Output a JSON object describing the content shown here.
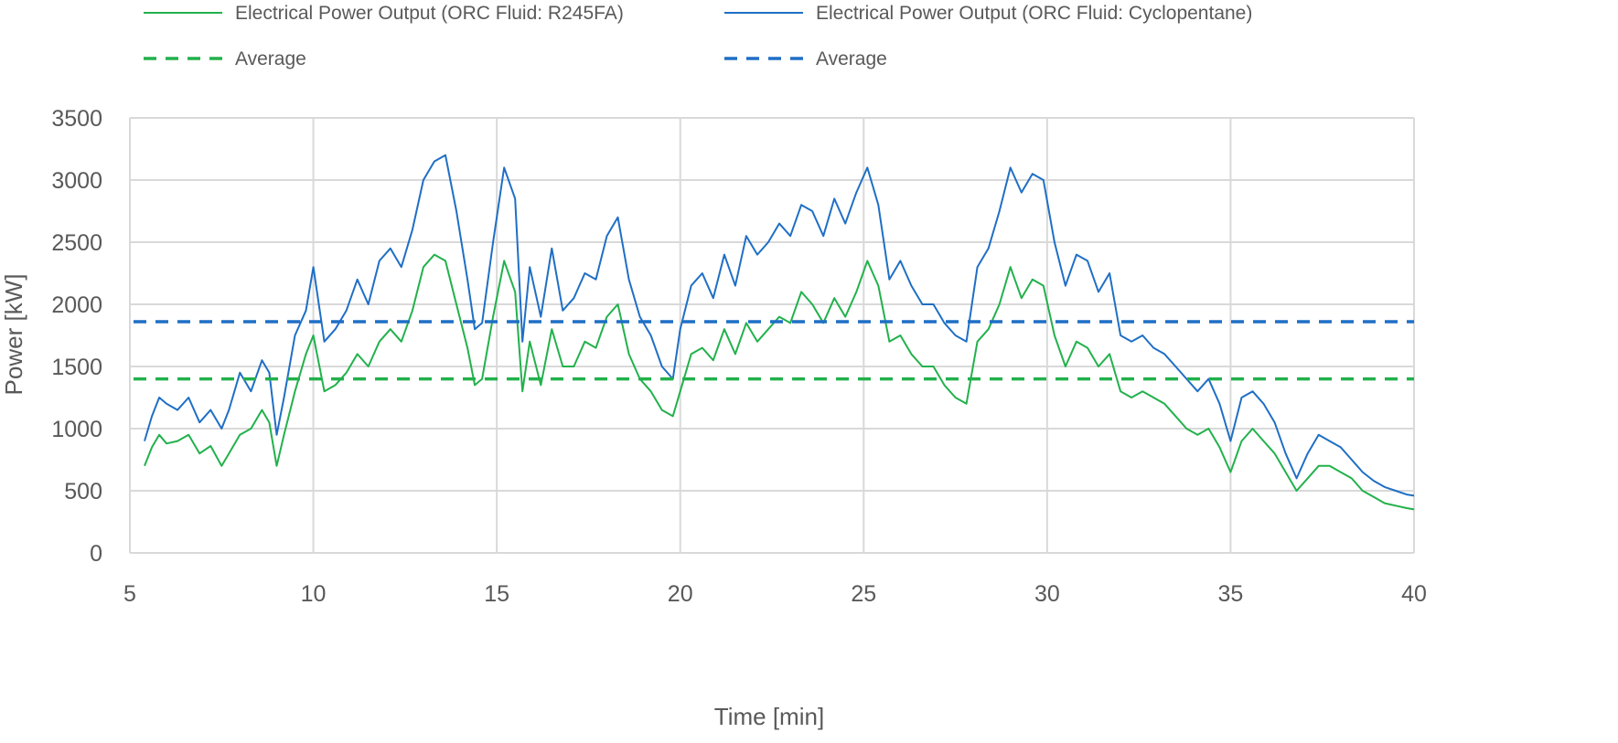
{
  "chart_data": {
    "type": "line",
    "title": "",
    "xlabel": "Time [min]",
    "ylabel": "Power [kW]",
    "xlim": [
      5,
      40
    ],
    "ylim": [
      0,
      3500
    ],
    "x_ticks": [
      5,
      10,
      15,
      20,
      25,
      30,
      35,
      40
    ],
    "y_ticks": [
      0,
      500,
      1000,
      1500,
      2000,
      2500,
      3000,
      3500
    ],
    "x_tick_labels": [
      "5",
      "10",
      "15",
      "20",
      "25",
      "30",
      "35",
      "40"
    ],
    "y_tick_labels": [
      "0",
      "500",
      "1000",
      "1500",
      "2000",
      "2500",
      "3000",
      "3500"
    ],
    "grid": true,
    "legend_position": "top",
    "series": [
      {
        "name": "Electrical Power Output (ORC Fluid: R245FA)",
        "color": "#22b14c",
        "style": "solid",
        "x": [
          5.4,
          5.6,
          5.8,
          6.0,
          6.3,
          6.6,
          6.9,
          7.2,
          7.5,
          7.7,
          8.0,
          8.3,
          8.6,
          8.8,
          9.0,
          9.2,
          9.5,
          9.8,
          10.0,
          10.3,
          10.6,
          10.9,
          11.2,
          11.5,
          11.8,
          12.1,
          12.4,
          12.7,
          13.0,
          13.3,
          13.6,
          13.9,
          14.2,
          14.4,
          14.6,
          14.9,
          15.2,
          15.5,
          15.7,
          15.9,
          16.2,
          16.5,
          16.8,
          17.1,
          17.4,
          17.7,
          18.0,
          18.3,
          18.6,
          18.9,
          19.2,
          19.5,
          19.8,
          20.0,
          20.3,
          20.6,
          20.9,
          21.2,
          21.5,
          21.8,
          22.1,
          22.4,
          22.7,
          23.0,
          23.3,
          23.6,
          23.9,
          24.2,
          24.5,
          24.8,
          25.1,
          25.4,
          25.7,
          26.0,
          26.3,
          26.6,
          26.9,
          27.2,
          27.5,
          27.8,
          28.1,
          28.4,
          28.7,
          29.0,
          29.3,
          29.6,
          29.9,
          30.2,
          30.5,
          30.8,
          31.1,
          31.4,
          31.7,
          32.0,
          32.3,
          32.6,
          32.9,
          33.2,
          33.5,
          33.8,
          34.1,
          34.4,
          34.7,
          35.0,
          35.3,
          35.6,
          35.9,
          36.2,
          36.5,
          36.8,
          37.1,
          37.4,
          37.7,
          38.0,
          38.3,
          38.6,
          38.9,
          39.2,
          39.5,
          39.8,
          40.0
        ],
        "values": [
          700,
          850,
          950,
          880,
          900,
          950,
          800,
          860,
          700,
          800,
          950,
          1000,
          1150,
          1050,
          700,
          950,
          1300,
          1600,
          1750,
          1300,
          1350,
          1450,
          1600,
          1500,
          1700,
          1800,
          1700,
          1950,
          2300,
          2400,
          2350,
          2000,
          1650,
          1350,
          1400,
          1900,
          2350,
          2100,
          1300,
          1700,
          1350,
          1800,
          1500,
          1500,
          1700,
          1650,
          1900,
          2000,
          1600,
          1400,
          1300,
          1150,
          1100,
          1300,
          1600,
          1650,
          1550,
          1800,
          1600,
          1850,
          1700,
          1800,
          1900,
          1850,
          2100,
          2000,
          1850,
          2050,
          1900,
          2100,
          2350,
          2150,
          1700,
          1750,
          1600,
          1500,
          1500,
          1350,
          1250,
          1200,
          1700,
          1800,
          2000,
          2300,
          2050,
          2200,
          2150,
          1750,
          1500,
          1700,
          1650,
          1500,
          1600,
          1300,
          1250,
          1300,
          1250,
          1200,
          1100,
          1000,
          950,
          1000,
          850,
          650,
          900,
          1000,
          900,
          800,
          650,
          500,
          600,
          700,
          700,
          650,
          600,
          500,
          450,
          400,
          380,
          360,
          350
        ]
      },
      {
        "name": "Electrical Power Output (ORC Fluid: Cyclopentane)",
        "color": "#1f6fc5",
        "style": "solid",
        "x": [
          5.4,
          5.6,
          5.8,
          6.0,
          6.3,
          6.6,
          6.9,
          7.2,
          7.5,
          7.7,
          8.0,
          8.3,
          8.6,
          8.8,
          9.0,
          9.2,
          9.5,
          9.8,
          10.0,
          10.3,
          10.6,
          10.9,
          11.2,
          11.5,
          11.8,
          12.1,
          12.4,
          12.7,
          13.0,
          13.3,
          13.6,
          13.9,
          14.2,
          14.4,
          14.6,
          14.9,
          15.2,
          15.5,
          15.7,
          15.9,
          16.2,
          16.5,
          16.8,
          17.1,
          17.4,
          17.7,
          18.0,
          18.3,
          18.6,
          18.9,
          19.2,
          19.5,
          19.8,
          20.0,
          20.3,
          20.6,
          20.9,
          21.2,
          21.5,
          21.8,
          22.1,
          22.4,
          22.7,
          23.0,
          23.3,
          23.6,
          23.9,
          24.2,
          24.5,
          24.8,
          25.1,
          25.4,
          25.7,
          26.0,
          26.3,
          26.6,
          26.9,
          27.2,
          27.5,
          27.8,
          28.1,
          28.4,
          28.7,
          29.0,
          29.3,
          29.6,
          29.9,
          30.2,
          30.5,
          30.8,
          31.1,
          31.4,
          31.7,
          32.0,
          32.3,
          32.6,
          32.9,
          33.2,
          33.5,
          33.8,
          34.1,
          34.4,
          34.7,
          35.0,
          35.3,
          35.6,
          35.9,
          36.2,
          36.5,
          36.8,
          37.1,
          37.4,
          37.7,
          38.0,
          38.3,
          38.6,
          38.9,
          39.2,
          39.5,
          39.8,
          40.0
        ],
        "values": [
          900,
          1100,
          1250,
          1200,
          1150,
          1250,
          1050,
          1150,
          1000,
          1150,
          1450,
          1300,
          1550,
          1450,
          950,
          1250,
          1750,
          1950,
          2300,
          1700,
          1800,
          1950,
          2200,
          2000,
          2350,
          2450,
          2300,
          2600,
          3000,
          3150,
          3200,
          2750,
          2200,
          1800,
          1850,
          2500,
          3100,
          2850,
          1700,
          2300,
          1900,
          2450,
          1950,
          2050,
          2250,
          2200,
          2550,
          2700,
          2200,
          1900,
          1750,
          1500,
          1400,
          1800,
          2150,
          2250,
          2050,
          2400,
          2150,
          2550,
          2400,
          2500,
          2650,
          2550,
          2800,
          2750,
          2550,
          2850,
          2650,
          2900,
          3100,
          2800,
          2200,
          2350,
          2150,
          2000,
          2000,
          1850,
          1750,
          1700,
          2300,
          2450,
          2750,
          3100,
          2900,
          3050,
          3000,
          2500,
          2150,
          2400,
          2350,
          2100,
          2250,
          1750,
          1700,
          1750,
          1650,
          1600,
          1500,
          1400,
          1300,
          1400,
          1200,
          900,
          1250,
          1300,
          1200,
          1050,
          800,
          600,
          800,
          950,
          900,
          850,
          750,
          650,
          580,
          530,
          500,
          470,
          460
        ]
      },
      {
        "name": "Average",
        "color": "#22b14c",
        "style": "dashed",
        "x": [
          5.1,
          40.0
        ],
        "values": [
          1400,
          1400
        ]
      },
      {
        "name": "Average",
        "color": "#1f6fc5",
        "style": "dashed",
        "x": [
          5.1,
          40.0
        ],
        "values": [
          1860,
          1860
        ]
      }
    ]
  }
}
